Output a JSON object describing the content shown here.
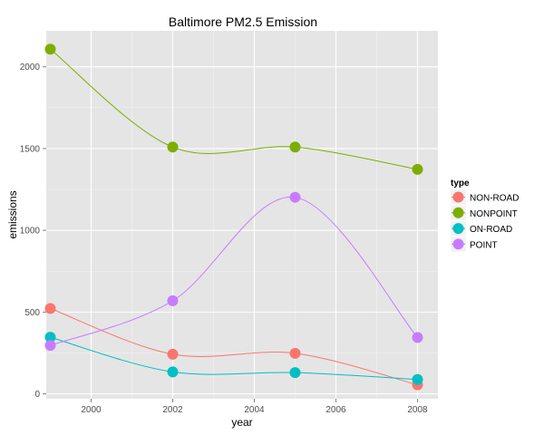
{
  "chart_data": {
    "type": "line",
    "title": "Baltimore PM2.5 Emission",
    "xlabel": "year",
    "ylabel": "emissions",
    "x": [
      1999,
      2002,
      2005,
      2008
    ],
    "xlim": [
      1998.9,
      2008.5
    ],
    "ylim": [
      -30,
      2220
    ],
    "xticks": [
      2000,
      2002,
      2004,
      2006,
      2008
    ],
    "yticks": [
      0,
      500,
      1000,
      1500,
      2000
    ],
    "grid": true,
    "legend": {
      "title": "type",
      "placement": "right"
    },
    "series": [
      {
        "name": "NON-ROAD",
        "color": "#F8766D",
        "values": [
          522,
          242,
          248,
          55
        ]
      },
      {
        "name": "NONPOINT",
        "color": "#7CAE00",
        "values": [
          2108,
          1509,
          1509,
          1373
        ]
      },
      {
        "name": "ON-ROAD",
        "color": "#00BFC4",
        "values": [
          346,
          134,
          130,
          88
        ]
      },
      {
        "name": "POINT",
        "color": "#C77CFF",
        "values": [
          296,
          569,
          1202,
          345
        ]
      }
    ]
  }
}
